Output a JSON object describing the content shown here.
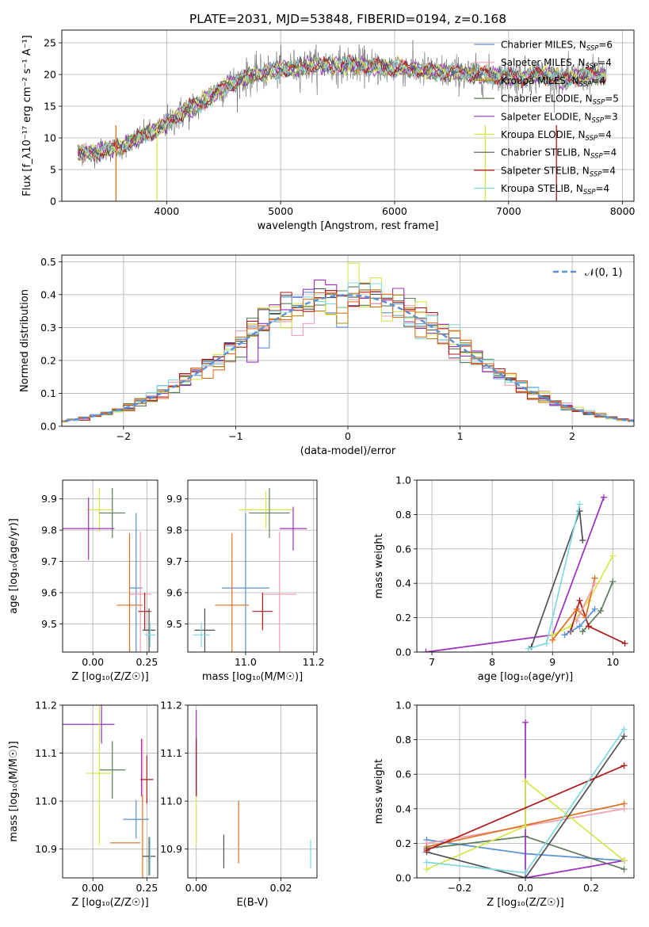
{
  "colors": {
    "ch_miles": "#5b8fd6",
    "sa_miles": "#f0a0b0",
    "kr_miles": "#b8860b",
    "ch_elodie": "#5a7d5a",
    "sa_elodie": "#9b30c0",
    "kr_elodie": "#d4e84a",
    "ch_stelib": "#505050",
    "sa_stelib": "#b01818",
    "kr_stelib": "#80d8e0",
    "orange": "#e07020",
    "gauss": "#5b8fd6"
  },
  "chart_data": [
    {
      "type": "line",
      "title": "PLATE=2031, MJD=53848, FIBERID=0194, z=0.168",
      "xlabel": "wavelength [Angstrom, rest frame]",
      "ylabel": "Flux [f_λ10⁻¹⁷ erg cm⁻² s⁻¹ A⁻¹]",
      "xlim": [
        3080,
        8100
      ],
      "ylim": [
        0,
        27
      ],
      "xticks": [
        4000,
        5000,
        6000,
        7000,
        8000
      ],
      "yticks": [
        0,
        5,
        10,
        15,
        20,
        25
      ],
      "legend": "top-right",
      "continuum": {
        "x": [
          3200,
          3400,
          3600,
          3800,
          3950,
          4100,
          4300,
          4500,
          4700,
          4900,
          5100,
          5300,
          5500,
          5700,
          5900,
          6100,
          6300,
          6500,
          6700,
          6900,
          7100,
          7300,
          7500,
          7700,
          7850
        ],
        "y": [
          7.5,
          7.8,
          8.5,
          10.5,
          11.5,
          13.5,
          15.5,
          18.0,
          19.5,
          20.5,
          21.0,
          21.5,
          21.5,
          21.5,
          21.0,
          21.0,
          20.5,
          20.3,
          20.0,
          19.8,
          19.5,
          20.0,
          19.2,
          20.0,
          19.8
        ]
      },
      "series": [
        {
          "label": "Chabrier MILES, N",
          "sub": "SSP",
          "suffix": "=6",
          "color": "#5b8fd6"
        },
        {
          "label": "Salpeter MILES, N",
          "sub": "SSP",
          "suffix": "=4",
          "color": "#f0a0b0"
        },
        {
          "label": "Kroupa MILES, N",
          "sub": "SSP",
          "suffix": "=4",
          "color": "#b8860b"
        },
        {
          "label": "Chabrier ELODIE, N",
          "sub": "SSP",
          "suffix": "=5",
          "color": "#5a7d5a"
        },
        {
          "label": "Salpeter ELODIE, N",
          "sub": "SSP",
          "suffix": "=3",
          "color": "#9b30c0"
        },
        {
          "label": "Kroupa ELODIE, N",
          "sub": "SSP",
          "suffix": "=4",
          "color": "#d4e84a"
        },
        {
          "label": "Chabrier STELIB, N",
          "sub": "SSP",
          "suffix": "=4",
          "color": "#505050"
        },
        {
          "label": "Salpeter STELIB, N",
          "sub": "SSP",
          "suffix": "=4",
          "color": "#b01818"
        },
        {
          "label": "Kroupa STELIB, N",
          "sub": "SSP",
          "suffix": "=4",
          "color": "#80d8e0"
        }
      ]
    },
    {
      "type": "bar",
      "xlabel": "(data-model)/error",
      "ylabel": "Normed distribution",
      "xlim": [
        -2.55,
        2.55
      ],
      "ylim": [
        0,
        0.52
      ],
      "xticks": [
        -2,
        -1,
        0,
        1,
        2
      ],
      "yticks": [
        0.0,
        0.1,
        0.2,
        0.3,
        0.4,
        0.5
      ],
      "legend": "top-right",
      "legend_label": "𝒩(0, 1)",
      "bin_width": 0.1,
      "gaussian": {
        "mean": 0,
        "sigma": 1
      }
    },
    {
      "type": "scatter",
      "xlabel": "Z [log₁₀(Z/Z☉)]",
      "ylabel": "age  [log₁₀(age/yr)]",
      "xlim": [
        -0.14,
        0.3
      ],
      "ylim": [
        9.41,
        9.96
      ],
      "xticks": [
        0.0,
        0.25
      ],
      "yticks": [
        9.5,
        9.6,
        9.7,
        9.8,
        9.9
      ],
      "points": [
        {
          "x": 0.03,
          "y": 9.865,
          "xerr": 0.06,
          "yerr": 0.07,
          "color": "#d4e84a"
        },
        {
          "x": 0.09,
          "y": 9.855,
          "xerr": 0.06,
          "yerr": 0.08,
          "color": "#5a7d5a"
        },
        {
          "x": -0.02,
          "y": 9.805,
          "xerr": 0.12,
          "yerr": 0.1,
          "color": "#9b30c0"
        },
        {
          "x": 0.2,
          "y": 9.615,
          "xerr": 0.03,
          "yerr": 0.24,
          "color": "#5b8fd6"
        },
        {
          "x": 0.22,
          "y": 9.595,
          "xerr": 0.05,
          "yerr": 0.2,
          "color": "#f0a0b0"
        },
        {
          "x": 0.17,
          "y": 9.56,
          "xerr": 0.06,
          "yerr": 0.23,
          "color": "#e07020"
        },
        {
          "x": 0.24,
          "y": 9.54,
          "xerr": 0.03,
          "yerr": 0.06,
          "color": "#b01818"
        },
        {
          "x": 0.26,
          "y": 9.48,
          "xerr": 0.03,
          "yerr": 0.07,
          "color": "#505050"
        },
        {
          "x": 0.265,
          "y": 9.465,
          "xerr": 0.025,
          "yerr": 0.04,
          "color": "#80d8e0"
        }
      ]
    },
    {
      "type": "scatter",
      "xlabel": "mass [log₁₀(M/M☉)]",
      "ylabel": "",
      "xlim": [
        10.83,
        11.21
      ],
      "ylim": [
        9.41,
        9.96
      ],
      "xticks": [
        11.0,
        11.2
      ],
      "yticks": [
        9.5,
        9.6,
        9.7,
        9.8,
        9.9
      ],
      "points": [
        {
          "x": 11.06,
          "y": 9.865,
          "xerr": 0.08,
          "yerr": 0.06,
          "color": "#d4e84a"
        },
        {
          "x": 11.07,
          "y": 9.855,
          "xerr": 0.06,
          "yerr": 0.08,
          "color": "#5a7d5a"
        },
        {
          "x": 11.14,
          "y": 9.805,
          "xerr": 0.04,
          "yerr": 0.07,
          "color": "#9b30c0"
        },
        {
          "x": 11.0,
          "y": 9.615,
          "xerr": 0.07,
          "yerr": 0.24,
          "color": "#5b8fd6"
        },
        {
          "x": 11.1,
          "y": 9.595,
          "xerr": 0.05,
          "yerr": 0.2,
          "color": "#f0a0b0"
        },
        {
          "x": 10.96,
          "y": 9.56,
          "xerr": 0.05,
          "yerr": 0.23,
          "color": "#e07020"
        },
        {
          "x": 11.05,
          "y": 9.54,
          "xerr": 0.03,
          "yerr": 0.06,
          "color": "#b01818"
        },
        {
          "x": 10.88,
          "y": 9.48,
          "xerr": 0.03,
          "yerr": 0.07,
          "color": "#505050"
        },
        {
          "x": 10.87,
          "y": 9.465,
          "xerr": 0.025,
          "yerr": 0.04,
          "color": "#80d8e0"
        }
      ]
    },
    {
      "type": "line",
      "xlabel": "age  [log₁₀(age/yr)]",
      "ylabel": "mass weight",
      "xlim": [
        6.75,
        10.35
      ],
      "ylim": [
        0,
        1.0
      ],
      "xticks": [
        7,
        8,
        9,
        10
      ],
      "yticks": [
        0.0,
        0.2,
        0.4,
        0.6,
        0.8,
        1.0
      ],
      "series": [
        {
          "color": "#9b30c0",
          "x": [
            6.9,
            9.0,
            9.85
          ],
          "y": [
            0.0,
            0.1,
            0.9
          ]
        },
        {
          "color": "#505050",
          "x": [
            8.65,
            9.45,
            9.5
          ],
          "y": [
            0.03,
            0.82,
            0.65
          ]
        },
        {
          "color": "#80d8e0",
          "x": [
            8.6,
            8.9,
            9.45
          ],
          "y": [
            0.02,
            0.05,
            0.86
          ]
        },
        {
          "color": "#d4e84a",
          "x": [
            9.0,
            9.3,
            9.6,
            10.0
          ],
          "y": [
            0.1,
            0.15,
            0.3,
            0.56
          ]
        },
        {
          "color": "#5a7d5a",
          "x": [
            9.5,
            9.8,
            10.0
          ],
          "y": [
            0.12,
            0.24,
            0.41
          ]
        },
        {
          "color": "#b01818",
          "x": [
            9.3,
            9.45,
            9.6,
            10.2
          ],
          "y": [
            0.12,
            0.3,
            0.15,
            0.05
          ]
        },
        {
          "color": "#e07020",
          "x": [
            9.0,
            9.4,
            9.55,
            9.7
          ],
          "y": [
            0.07,
            0.25,
            0.2,
            0.43
          ]
        },
        {
          "color": "#5b8fd6",
          "x": [
            9.2,
            9.45,
            9.7
          ],
          "y": [
            0.1,
            0.15,
            0.25
          ]
        },
        {
          "color": "#f0a0b0",
          "x": [
            9.4,
            9.7
          ],
          "y": [
            0.18,
            0.4
          ]
        }
      ]
    },
    {
      "type": "scatter",
      "xlabel": "Z [log₁₀(Z/Z☉)]",
      "ylabel": "mass [log₁₀(M/M☉)]",
      "xlim": [
        -0.14,
        0.3
      ],
      "ylim": [
        10.84,
        11.2
      ],
      "xticks": [
        0.0,
        0.25
      ],
      "yticks": [
        10.9,
        11.0,
        11.1,
        11.2
      ],
      "points": [
        {
          "x": -0.02,
          "y": 11.16,
          "xerr": 0.12,
          "yerr": 0.0,
          "color": "#9b30c0"
        },
        {
          "x": 0.04,
          "y": 11.16,
          "xerr": 0.0,
          "yerr": 0.04,
          "color": "#9b30c0"
        },
        {
          "x": 0.09,
          "y": 11.065,
          "xerr": 0.06,
          "yerr": 0.06,
          "color": "#5a7d5a"
        },
        {
          "x": 0.03,
          "y": 11.058,
          "xerr": 0.06,
          "yerr": 0.15,
          "color": "#d4e84a"
        },
        {
          "x": 0.225,
          "y": 11.07,
          "xerr": 0.0,
          "yerr": 0.06,
          "color": "#9b30c0"
        },
        {
          "x": 0.23,
          "y": 11.06,
          "xerr": 0.0,
          "yerr": 0.07,
          "color": "#f0a0b0"
        },
        {
          "x": 0.25,
          "y": 11.045,
          "xerr": 0.03,
          "yerr": 0.05,
          "color": "#b01818"
        },
        {
          "x": 0.2,
          "y": 10.962,
          "xerr": 0.06,
          "yerr": 0.04,
          "color": "#5b8fd6"
        },
        {
          "x": 0.15,
          "y": 10.913,
          "xerr": 0.07,
          "yerr": 0.0,
          "color": "#e07020"
        },
        {
          "x": 0.23,
          "y": 10.913,
          "xerr": 0.0,
          "yerr": 0.1,
          "color": "#e07020"
        },
        {
          "x": 0.26,
          "y": 10.885,
          "xerr": 0.03,
          "yerr": 0.04,
          "color": "#505050"
        },
        {
          "x": 0.265,
          "y": 10.885,
          "xerr": 0.0,
          "yerr": 0.04,
          "color": "#80d8e0"
        }
      ]
    },
    {
      "type": "scatter",
      "xlabel": "E(B-V)",
      "ylabel": "",
      "xlim": [
        -0.002,
        0.0285
      ],
      "ylim": [
        10.84,
        11.2
      ],
      "xticks": [
        0.0,
        0.02
      ],
      "yticks": [
        10.9,
        11.0,
        11.1,
        11.2
      ],
      "points": [
        {
          "x": 0.0,
          "y": 11.1,
          "xerr": 0,
          "yerr": 0.09,
          "color": "#9b30c0"
        },
        {
          "x": 0.0,
          "y": 11.07,
          "xerr": 0,
          "yerr": 0.06,
          "color": "#b01818"
        },
        {
          "x": 0.0,
          "y": 10.96,
          "xerr": 0,
          "yerr": 0.05,
          "color": "#d4e84a"
        },
        {
          "x": 0.0065,
          "y": 10.895,
          "xerr": 0,
          "yerr": 0.035,
          "color": "#505050"
        },
        {
          "x": 0.01,
          "y": 10.935,
          "xerr": 0,
          "yerr": 0.065,
          "color": "#e07020"
        },
        {
          "x": 0.027,
          "y": 10.89,
          "xerr": 0,
          "yerr": 0.03,
          "color": "#80d8e0"
        }
      ]
    },
    {
      "type": "line",
      "xlabel": "Z [log₁₀(Z/Z☉)]",
      "ylabel": "mass weight",
      "xlim": [
        -0.33,
        0.33
      ],
      "ylim": [
        0,
        1.0
      ],
      "xticks": [
        -0.2,
        0.0,
        0.2
      ],
      "yticks": [
        0.0,
        0.2,
        0.4,
        0.6,
        0.8,
        1.0
      ],
      "series": [
        {
          "color": "#5b8fd6",
          "x": [
            -0.3,
            0.0,
            0.3
          ],
          "y": [
            0.22,
            0.14,
            0.1
          ]
        },
        {
          "color": "#f0a0b0",
          "x": [
            -0.3,
            0.3
          ],
          "y": [
            0.2,
            0.4
          ]
        },
        {
          "color": "#e07020",
          "x": [
            -0.3,
            0.3
          ],
          "y": [
            0.18,
            0.43
          ]
        },
        {
          "color": "#5a7d5a",
          "x": [
            -0.3,
            0.0,
            0.3
          ],
          "y": [
            0.17,
            0.24,
            0.05
          ]
        },
        {
          "color": "#9b30c0",
          "x": [
            0.0,
            0.0,
            0.3
          ],
          "y": [
            0.9,
            0.0,
            0.1
          ]
        },
        {
          "color": "#d4e84a",
          "x": [
            -0.3,
            0.0,
            0.0,
            0.3
          ],
          "y": [
            0.05,
            0.3,
            0.56,
            0.1
          ]
        },
        {
          "color": "#505050",
          "x": [
            -0.3,
            0.0,
            0.3
          ],
          "y": [
            0.15,
            0.0,
            0.82
          ]
        },
        {
          "color": "#b01818",
          "x": [
            -0.3,
            0.3
          ],
          "y": [
            0.16,
            0.65
          ]
        },
        {
          "color": "#80d8e0",
          "x": [
            -0.3,
            0.0,
            0.3
          ],
          "y": [
            0.09,
            0.03,
            0.86
          ]
        }
      ]
    }
  ]
}
